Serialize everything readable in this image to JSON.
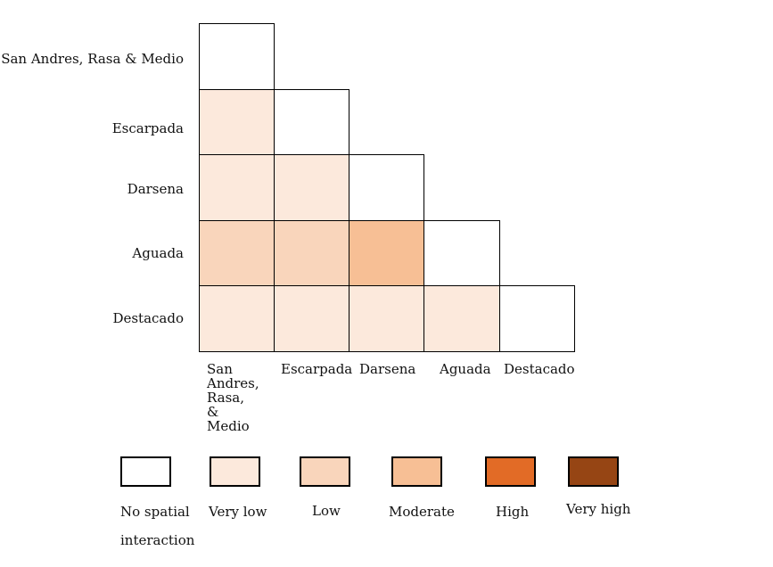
{
  "chart_data": {
    "type": "heatmap",
    "shape": "lower-triangular",
    "rows": [
      "San Andres, Rasa & Medio",
      "Escarpada",
      "Darsena",
      "Aguada",
      "Destacado"
    ],
    "columns": [
      "San Andres, Rasa, & Medio",
      "Escarpada",
      "Darsena",
      "Aguada",
      "Destacado"
    ],
    "levels": [
      "No spatial interaction",
      "Very low",
      "Low",
      "Moderate",
      "High",
      "Very high"
    ],
    "level_colors": [
      "#ffffff",
      "#fce9dc",
      "#f9d5bb",
      "#f7bf95",
      "#e26b26",
      "#964514"
    ],
    "matrix": [
      [
        0
      ],
      [
        1,
        0
      ],
      [
        1,
        1,
        0
      ],
      [
        2,
        2,
        3,
        0
      ],
      [
        1,
        1,
        1,
        1,
        0
      ]
    ]
  },
  "legend": [
    {
      "label": "No spatial interaction",
      "color": "#ffffff"
    },
    {
      "label": "Very low",
      "color": "#fce9dc"
    },
    {
      "label": "Low",
      "color": "#f9d5bb"
    },
    {
      "label": "Moderate",
      "color": "#f7bf95"
    },
    {
      "label": "High",
      "color": "#e26b26"
    },
    {
      "label": "Very high",
      "color": "#964514"
    }
  ]
}
